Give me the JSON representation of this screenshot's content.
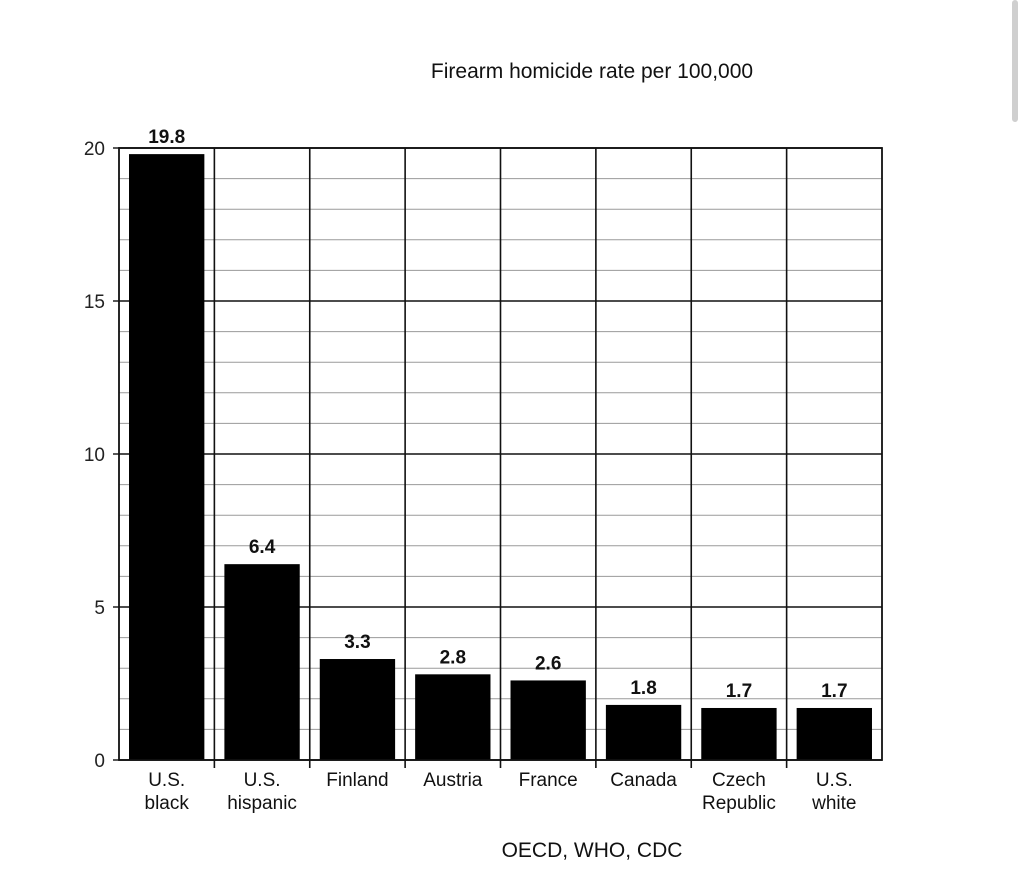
{
  "chart_data": {
    "type": "bar",
    "title": "Firearm homicide rate per 100,000",
    "source": "OECD, WHO, CDC",
    "xlabel": "",
    "ylabel": "",
    "ylim": [
      0,
      20
    ],
    "yticks": [
      0,
      5,
      10,
      15,
      20
    ],
    "minor_step": 1,
    "grid": true,
    "categories": [
      [
        "U.S.",
        "black"
      ],
      [
        "U.S.",
        "hispanic"
      ],
      [
        "Finland"
      ],
      [
        "Austria"
      ],
      [
        "France"
      ],
      [
        "Canada"
      ],
      [
        "Czech",
        "Republic"
      ],
      [
        "U.S.",
        "white"
      ]
    ],
    "values": [
      19.8,
      6.4,
      3.3,
      2.8,
      2.6,
      1.8,
      1.7,
      1.7
    ],
    "data_labels": [
      "19.8",
      "6.4",
      "3.3",
      "2.8",
      "2.6",
      "1.8",
      "1.7",
      "1.7"
    ],
    "bar_color": "#000000",
    "grid_major_color": "#111111",
    "grid_minor_color": "#9a9a9a"
  }
}
